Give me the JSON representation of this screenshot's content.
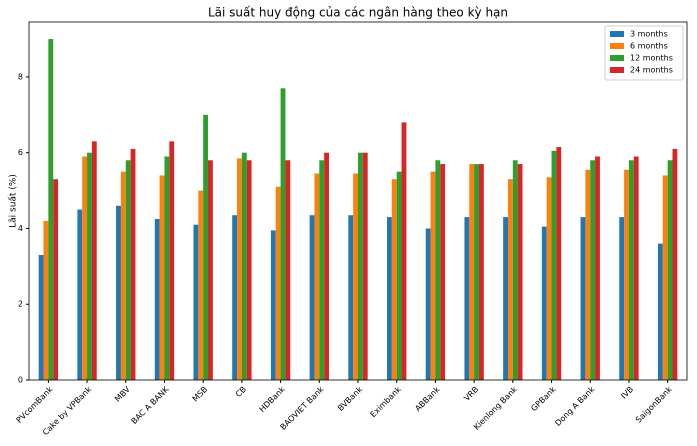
{
  "chart_data": {
    "type": "bar",
    "title": "Lãi suất huy động của các ngân hàng theo kỳ hạn",
    "y_label": "Lãi suất (%)",
    "categories": [
      "PVcomBank",
      "Cake by VPBank",
      "MBV",
      "BAC A BANK",
      "MSB",
      "CB",
      "HDBank",
      "BAOVIET Bank",
      "BVBank",
      "Eximbank",
      "ABBank",
      "VRB",
      "Kienlong Bank",
      "GPBank",
      "Dong A Bank",
      "IVB",
      "SaigonBank"
    ],
    "series": [
      {
        "name": "3 months",
        "color": "#1f77b4",
        "values": [
          3.3,
          4.5,
          4.6,
          4.25,
          4.1,
          4.35,
          3.95,
          4.35,
          4.35,
          4.3,
          4.0,
          4.3,
          4.3,
          4.05,
          4.3,
          4.3,
          3.6
        ]
      },
      {
        "name": "6 months",
        "color": "#ff7f0e",
        "values": [
          4.2,
          5.9,
          5.5,
          5.4,
          5.0,
          5.85,
          5.1,
          5.45,
          5.45,
          5.3,
          5.5,
          5.7,
          5.3,
          5.35,
          5.55,
          5.55,
          5.4
        ]
      },
      {
        "name": "12 months",
        "color": "#2ca02c",
        "values": [
          9.0,
          6.0,
          5.8,
          5.9,
          7.0,
          6.0,
          7.7,
          5.8,
          6.0,
          5.5,
          5.8,
          5.7,
          5.8,
          6.05,
          5.8,
          5.8,
          5.8
        ]
      },
      {
        "name": "24 months",
        "color": "#d62728",
        "values": [
          5.3,
          6.3,
          6.1,
          6.3,
          5.8,
          5.8,
          5.8,
          6.0,
          6.0,
          6.8,
          5.7,
          5.7,
          5.7,
          6.15,
          5.9,
          5.9,
          6.1
        ]
      }
    ],
    "ylim": [
      0,
      9.45
    ],
    "yticks": [
      0,
      2,
      4,
      6,
      8
    ],
    "grid": false,
    "legend": "upper-right"
  }
}
